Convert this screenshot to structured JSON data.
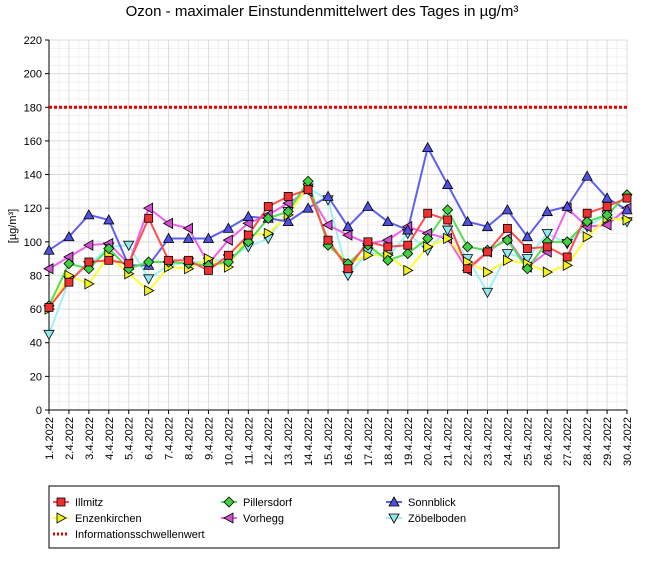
{
  "chart_data": {
    "type": "line",
    "title": "Ozon -  maximaler Einstundenmittelwert des Tages in µg/m³",
    "ylabel": "[µg/m³]",
    "xlabel": "",
    "ylim": [
      0,
      220
    ],
    "yticks": [
      0,
      20,
      40,
      60,
      80,
      100,
      120,
      140,
      160,
      180,
      200,
      220
    ],
    "grid": true,
    "legend_position": "bottom",
    "categories": [
      "1.4.2022",
      "2.4.2022",
      "3.4.2022",
      "4.4.2022",
      "5.4.2022",
      "6.4.2022",
      "7.4.2022",
      "8.4.2022",
      "9.4.2022",
      "10.4.2022",
      "11.4.2022",
      "12.4.2022",
      "13.4.2022",
      "14.4.2022",
      "15.4.2022",
      "16.4.2022",
      "17.4.2022",
      "18.4.2022",
      "19.4.2022",
      "20.4.2022",
      "21.4.2022",
      "22.4.2022",
      "23.4.2022",
      "24.4.2022",
      "25.4.2022",
      "26.4.2022",
      "27.4.2022",
      "28.4.2022",
      "29.4.2022",
      "30.4.2022"
    ],
    "threshold": {
      "name": "Informationsschwellenwert",
      "value": 180,
      "color": "#e00000"
    },
    "series": [
      {
        "name": "Illmitz",
        "color": "#ff5050",
        "marker_color": "#f03030",
        "marker": "square",
        "values": [
          61,
          76,
          88,
          89,
          87,
          114,
          89,
          89,
          83,
          92,
          104,
          121,
          127,
          131,
          101,
          84,
          100,
          97,
          98,
          117,
          113,
          84,
          94,
          108,
          96,
          97,
          91,
          117,
          121,
          126
        ]
      },
      {
        "name": "Pillersdorf",
        "color": "#50e050",
        "marker_color": "#40d040",
        "marker": "diamond",
        "values": [
          62,
          87,
          84,
          96,
          84,
          88,
          88,
          87,
          86,
          88,
          100,
          114,
          118,
          136,
          98,
          87,
          98,
          89,
          93,
          102,
          119,
          97,
          95,
          101,
          84,
          100,
          100,
          112,
          116,
          128
        ]
      },
      {
        "name": "Sonnblick",
        "color": "#6060f0",
        "marker_color": "#5050e0",
        "marker": "triangle-up",
        "values": [
          95,
          103,
          116,
          113,
          86,
          86,
          102,
          102,
          102,
          108,
          115,
          114,
          112,
          120,
          127,
          109,
          121,
          112,
          107,
          156,
          134,
          112,
          109,
          119,
          103,
          118,
          121,
          139,
          126,
          119
        ]
      },
      {
        "name": "Enzenkirchen",
        "color": "#ffff30",
        "marker_color": "#f0f020",
        "marker": "triangle-right",
        "values": [
          60,
          80,
          75,
          92,
          81,
          71,
          85,
          84,
          90,
          85,
          104,
          105,
          116,
          133,
          100,
          87,
          92,
          92,
          83,
          97,
          102,
          88,
          82,
          89,
          87,
          82,
          86,
          103,
          114,
          113
        ]
      },
      {
        "name": "Vorhegg",
        "color": "#f060f0",
        "marker_color": "#d050d0",
        "marker": "triangle-left",
        "values": [
          84,
          91,
          98,
          99,
          87,
          120,
          111,
          108,
          87,
          101,
          111,
          116,
          123,
          130,
          110,
          104,
          99,
          101,
          109,
          105,
          102,
          83,
          94,
          102,
          85,
          94,
          120,
          109,
          110,
          120
        ]
      },
      {
        "name": "Zöbelboden",
        "color": "#a0f0f8",
        "marker_color": "#90e8f0",
        "marker": "triangle-down",
        "values": [
          45,
          77,
          86,
          97,
          98,
          78,
          86,
          88,
          88,
          90,
          97,
          102,
          118,
          132,
          125,
          80,
          94,
          91,
          105,
          95,
          107,
          90,
          70,
          93,
          90,
          105,
          99,
          109,
          116,
          112
        ]
      }
    ]
  }
}
